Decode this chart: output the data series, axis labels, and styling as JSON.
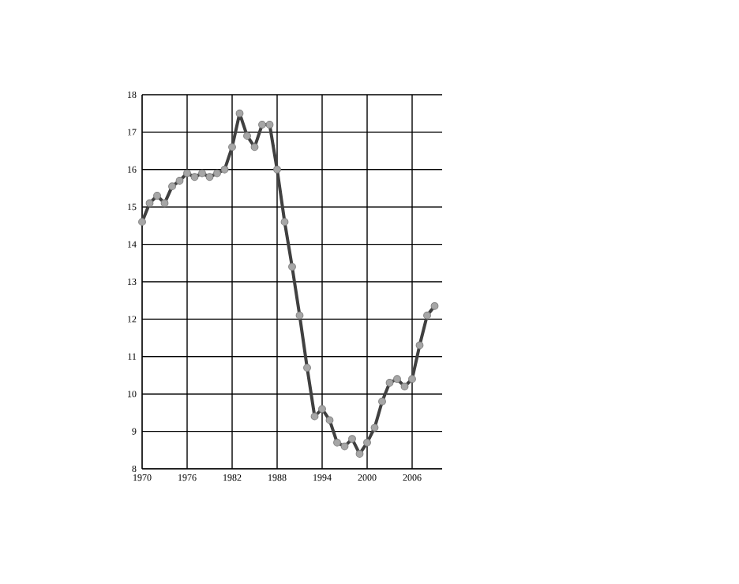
{
  "chart_data": {
    "type": "line",
    "x": [
      1970,
      1971,
      1972,
      1973,
      1974,
      1975,
      1976,
      1977,
      1978,
      1979,
      1980,
      1981,
      1982,
      1983,
      1984,
      1985,
      1986,
      1987,
      1988,
      1989,
      1990,
      1991,
      1992,
      1993,
      1994,
      1995,
      1996,
      1997,
      1998,
      1999,
      2000,
      2001,
      2002,
      2003,
      2004,
      2005,
      2006,
      2007,
      2008,
      2009
    ],
    "series": [
      {
        "color": "#404040",
        "values": [
          14.6,
          15.1,
          15.3,
          15.1,
          15.55,
          15.7,
          15.9,
          15.8,
          15.9,
          15.8,
          15.9,
          16.0,
          16.6,
          17.5,
          16.9,
          16.6,
          17.2,
          17.2,
          16.0,
          14.6,
          13.4,
          12.1,
          10.7,
          9.4,
          9.6,
          9.3,
          8.7,
          8.6,
          8.8,
          8.4,
          8.7,
          9.1,
          9.8,
          10.3,
          10.4,
          10.2,
          10.4,
          11.3,
          12.1,
          12.35
        ]
      }
    ],
    "xlim": [
      1970,
      2010
    ],
    "xticks": [
      1970,
      1976,
      1982,
      1988,
      1994,
      2000,
      2006
    ],
    "ylim": [
      8,
      18
    ],
    "yticks": [
      8,
      9,
      10,
      11,
      12,
      13,
      14,
      15,
      16,
      17,
      18
    ],
    "grid": true,
    "marker": "circle",
    "line_style": "solid"
  }
}
